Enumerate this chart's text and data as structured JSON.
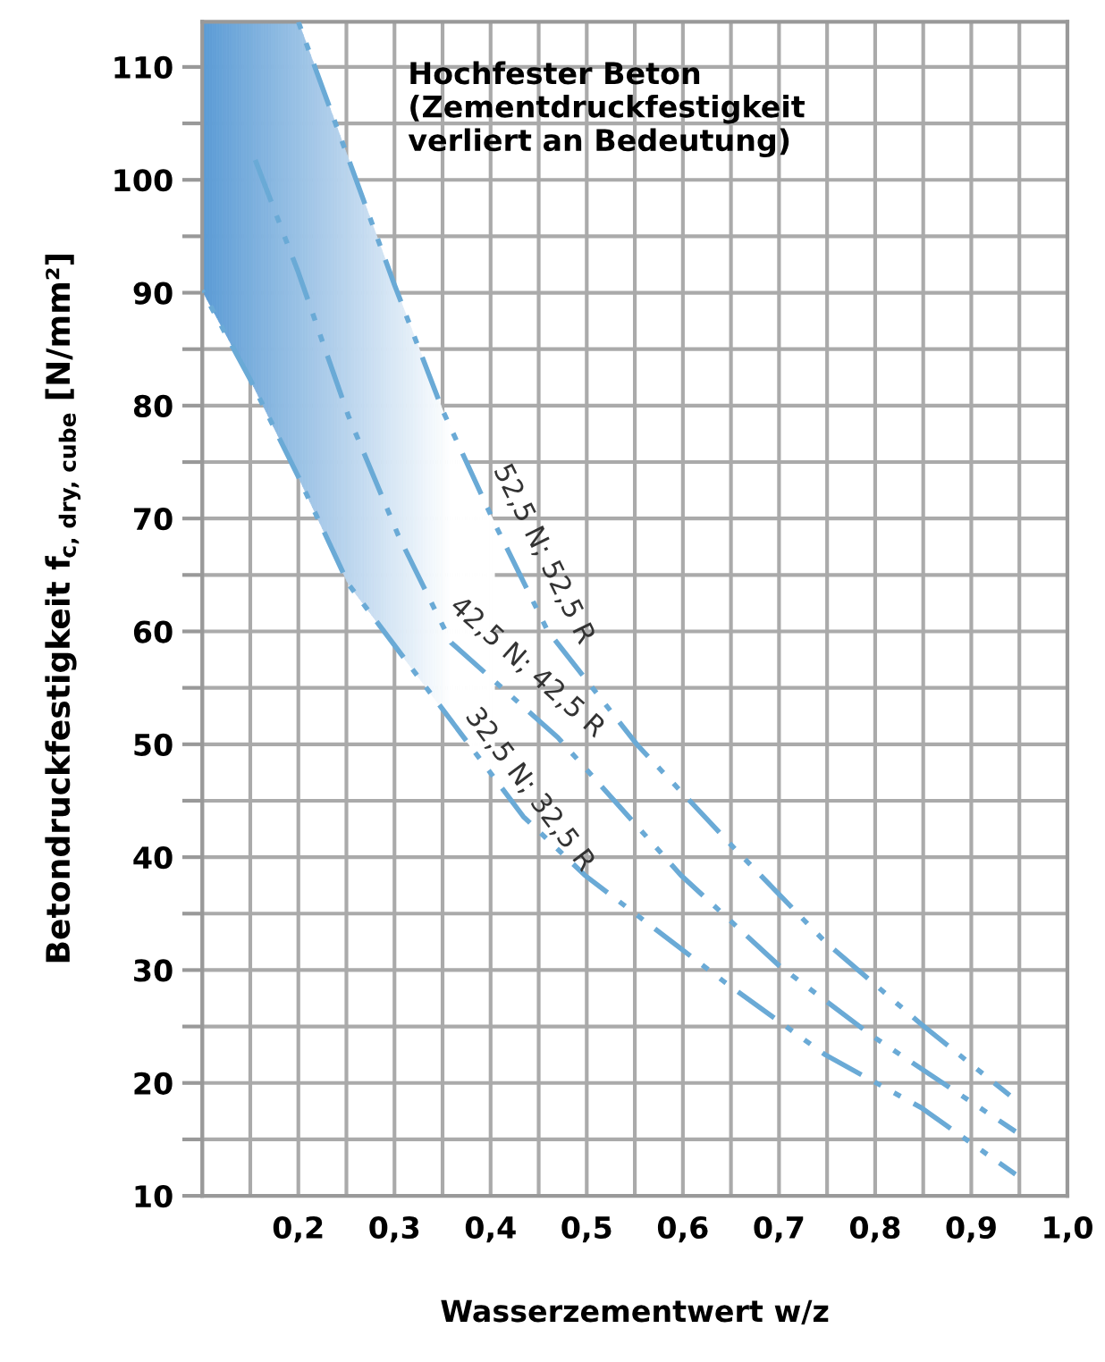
{
  "chart_data": {
    "type": "line",
    "xlabel": "Wasserzementwert w/z",
    "ylabel": "Betondruckfestigkeit f$_{c, dry, cube}$ [N/mm²]",
    "xlim": [
      0.1,
      1.0
    ],
    "ylim": [
      10,
      114
    ],
    "xticks": [
      {
        "value": 0.1,
        "label": null
      },
      {
        "value": 0.15,
        "label": null
      },
      {
        "value": 0.2,
        "label": "0,2"
      },
      {
        "value": 0.25,
        "label": null
      },
      {
        "value": 0.3,
        "label": "0,3"
      },
      {
        "value": 0.35,
        "label": null
      },
      {
        "value": 0.4,
        "label": "0,4"
      },
      {
        "value": 0.45,
        "label": null
      },
      {
        "value": 0.5,
        "label": "0,5"
      },
      {
        "value": 0.55,
        "label": null
      },
      {
        "value": 0.6,
        "label": "0,6"
      },
      {
        "value": 0.65,
        "label": null
      },
      {
        "value": 0.7,
        "label": "0,7"
      },
      {
        "value": 0.75,
        "label": null
      },
      {
        "value": 0.8,
        "label": "0,8"
      },
      {
        "value": 0.85,
        "label": null
      },
      {
        "value": 0.9,
        "label": "0,9"
      },
      {
        "value": 0.95,
        "label": null
      },
      {
        "value": 1.0,
        "label": "1,0"
      }
    ],
    "yticks": [
      10,
      {
        "value": 15,
        "label": null
      },
      20,
      {
        "value": 25,
        "label": null
      },
      30,
      {
        "value": 35,
        "label": null
      },
      40,
      {
        "value": 45,
        "label": null
      },
      50,
      {
        "value": 55,
        "label": null
      },
      60,
      {
        "value": 65,
        "label": null
      },
      70,
      {
        "value": 75,
        "label": null
      },
      80,
      {
        "value": 85,
        "label": null
      },
      90,
      {
        "value": 95,
        "label": null
      },
      100,
      {
        "value": 105,
        "label": null
      },
      110
    ],
    "grid": true,
    "legend": false,
    "marker": "none",
    "line_style": "dashed",
    "series": [
      {
        "name": "52,5 N; 52,5 R",
        "color": "#6aaad6",
        "x": [
          0.2,
          0.3,
          0.35,
          0.404,
          0.459,
          0.552,
          0.65,
          0.748,
          0.848,
          0.94
        ],
        "values": [
          114,
          90.7,
          79.6,
          69.6,
          60.1,
          50,
          41.1,
          32.5,
          25.2,
          18.9
        ]
      },
      {
        "name": "42,5 N; 42,5 R",
        "color": "#6aaad6",
        "x": [
          0.15,
          0.2,
          0.252,
          0.304,
          0.359,
          0.47,
          0.598,
          0.7,
          0.798,
          0.946
        ],
        "values": [
          102.9,
          91.8,
          79.1,
          68.5,
          59,
          50.6,
          38.4,
          30.4,
          24.1,
          15.7
        ]
      },
      {
        "name": "32,5 N; 32,5 R",
        "color": "#6aaad6",
        "x": [
          0.1,
          0.15,
          0.2,
          0.252,
          0.434,
          0.498,
          0.644,
          0.748,
          0.848,
          0.946
        ],
        "values": [
          90.2,
          82.3,
          73.7,
          64.2,
          43.6,
          38.4,
          28.9,
          22.5,
          17.8,
          11.9
        ]
      }
    ],
    "annotations": [
      "Hochfester Beton\n(Zementdruckfestigkeit\nverliert an Bedeutung)"
    ]
  }
}
